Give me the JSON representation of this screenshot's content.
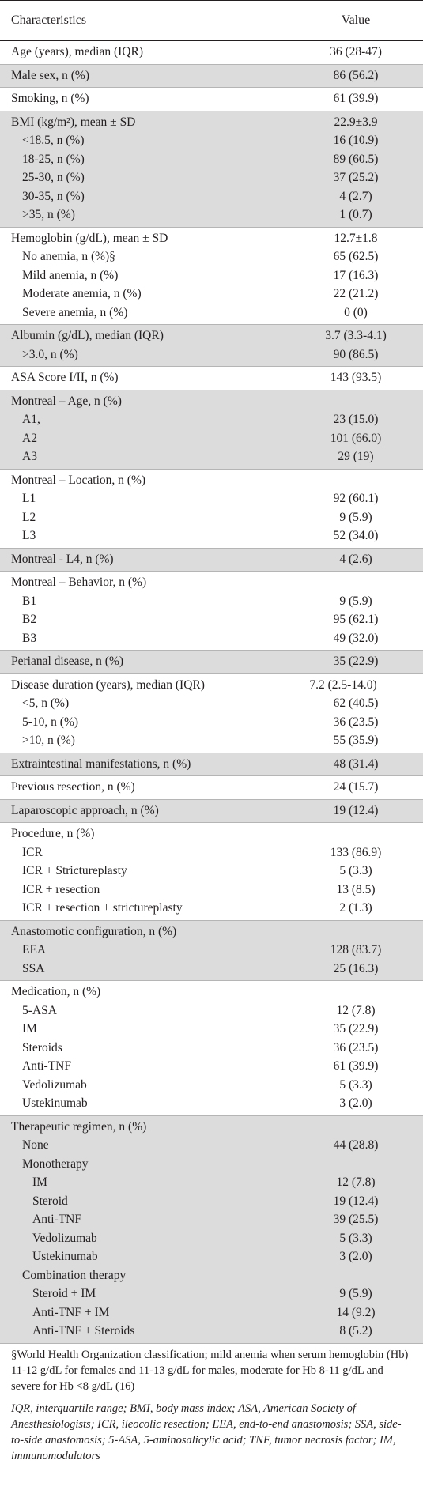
{
  "header": {
    "col1": "Characteristics",
    "col2": "Value"
  },
  "groups": [
    {
      "shaded": false,
      "rows": [
        {
          "label": "Age (years), median (IQR)",
          "value": "36 (28-47)",
          "indent": 0
        }
      ]
    },
    {
      "shaded": true,
      "rows": [
        {
          "label": "Male sex, n (%)",
          "value": "86 (56.2)",
          "indent": 0
        }
      ]
    },
    {
      "shaded": false,
      "rows": [
        {
          "label": "Smoking, n (%)",
          "value": "61 (39.9)",
          "indent": 0
        }
      ]
    },
    {
      "shaded": true,
      "rows": [
        {
          "label": "BMI (kg/m²), mean ± SD",
          "value": "22.9±3.9",
          "indent": 0
        },
        {
          "label": "<18.5, n (%)",
          "value": "16 (10.9)",
          "indent": 1
        },
        {
          "label": "18-25, n (%)",
          "value": "89 (60.5)",
          "indent": 1
        },
        {
          "label": "25-30, n (%)",
          "value": "37 (25.2)",
          "indent": 1
        },
        {
          "label": "30-35, n (%)",
          "value": "4 (2.7)",
          "indent": 1
        },
        {
          "label": ">35, n (%)",
          "value": "1 (0.7)",
          "indent": 1
        }
      ]
    },
    {
      "shaded": false,
      "rows": [
        {
          "label": "Hemoglobin (g/dL), mean ± SD",
          "value": "12.7±1.8",
          "indent": 0
        },
        {
          "label": "No anemia, n (%)§",
          "value": "65 (62.5)",
          "indent": 1
        },
        {
          "label": "Mild anemia, n (%)",
          "value": "17 (16.3)",
          "indent": 1
        },
        {
          "label": "Moderate anemia, n (%)",
          "value": "22 (21.2)",
          "indent": 1
        },
        {
          "label": "Severe anemia, n (%)",
          "value": "0 (0)",
          "indent": 1
        }
      ]
    },
    {
      "shaded": true,
      "rows": [
        {
          "label": "Albumin (g/dL), median (IQR)",
          "value": "3.7 (3.3-4.1)",
          "indent": 0
        },
        {
          "label": ">3.0, n (%)",
          "value": "90 (86.5)",
          "indent": 1
        }
      ]
    },
    {
      "shaded": false,
      "rows": [
        {
          "label": "ASA Score I/II, n (%)",
          "value": "143 (93.5)",
          "indent": 0
        }
      ]
    },
    {
      "shaded": true,
      "rows": [
        {
          "label": "Montreal – Age, n (%)",
          "value": "",
          "indent": 0
        },
        {
          "label": "A1,",
          "value": "23 (15.0)",
          "indent": 1
        },
        {
          "label": "A2",
          "value": "101 (66.0)",
          "indent": 1
        },
        {
          "label": "A3",
          "value": "29 (19)",
          "indent": 1
        }
      ]
    },
    {
      "shaded": false,
      "rows": [
        {
          "label": "Montreal – Location, n (%)",
          "value": "",
          "indent": 0
        },
        {
          "label": "L1",
          "value": "92 (60.1)",
          "indent": 1
        },
        {
          "label": "L2",
          "value": "9 (5.9)",
          "indent": 1
        },
        {
          "label": "L3",
          "value": "52 (34.0)",
          "indent": 1
        }
      ]
    },
    {
      "shaded": true,
      "rows": [
        {
          "label": "Montreal - L4, n (%)",
          "value": "4 (2.6)",
          "indent": 0
        }
      ]
    },
    {
      "shaded": false,
      "rows": [
        {
          "label": "Montreal – Behavior, n (%)",
          "value": "",
          "indent": 0
        },
        {
          "label": "B1",
          "value": "9 (5.9)",
          "indent": 1
        },
        {
          "label": "B2",
          "value": "95 (62.1)",
          "indent": 1
        },
        {
          "label": "B3",
          "value": "49 (32.0)",
          "indent": 1
        }
      ]
    },
    {
      "shaded": true,
      "rows": [
        {
          "label": "Perianal disease, n (%)",
          "value": "35 (22.9)",
          "indent": 0
        }
      ]
    },
    {
      "shaded": false,
      "rows": [
        {
          "label": "Disease duration (years), median (IQR)",
          "value": "7.2 (2.5-14.0)",
          "indent": 0,
          "wrap": true
        },
        {
          "label": "<5, n (%)",
          "value": "62 (40.5)",
          "indent": 1
        },
        {
          "label": "5-10, n (%)",
          "value": "36 (23.5)",
          "indent": 1
        },
        {
          "label": ">10, n (%)",
          "value": "55 (35.9)",
          "indent": 1
        }
      ]
    },
    {
      "shaded": true,
      "rows": [
        {
          "label": "Extraintestinal manifestations, n (%)",
          "value": "48 (31.4)",
          "indent": 0
        }
      ]
    },
    {
      "shaded": false,
      "rows": [
        {
          "label": "Previous resection, n (%)",
          "value": "24 (15.7)",
          "indent": 0
        }
      ]
    },
    {
      "shaded": true,
      "rows": [
        {
          "label": "Laparoscopic approach, n (%)",
          "value": "19 (12.4)",
          "indent": 0
        }
      ]
    },
    {
      "shaded": false,
      "rows": [
        {
          "label": "Procedure, n (%)",
          "value": "",
          "indent": 0
        },
        {
          "label": "ICR",
          "value": "133 (86.9)",
          "indent": 1
        },
        {
          "label": "ICR + Strictureplasty",
          "value": "5 (3.3)",
          "indent": 1
        },
        {
          "label": "ICR + resection",
          "value": "13 (8.5)",
          "indent": 1
        },
        {
          "label": "ICR + resection + strictureplasty",
          "value": "2 (1.3)",
          "indent": 1
        }
      ]
    },
    {
      "shaded": true,
      "rows": [
        {
          "label": "Anastomotic configuration, n (%)",
          "value": "",
          "indent": 0
        },
        {
          "label": "EEA",
          "value": "128 (83.7)",
          "indent": 1
        },
        {
          "label": "SSA",
          "value": "25 (16.3)",
          "indent": 1
        }
      ]
    },
    {
      "shaded": false,
      "rows": [
        {
          "label": "Medication, n (%)",
          "value": "",
          "indent": 0
        },
        {
          "label": "5-ASA",
          "value": "12 (7.8)",
          "indent": 1
        },
        {
          "label": "IM",
          "value": "35 (22.9)",
          "indent": 1
        },
        {
          "label": "Steroids",
          "value": "36 (23.5)",
          "indent": 1
        },
        {
          "label": "Anti-TNF",
          "value": "61 (39.9)",
          "indent": 1
        },
        {
          "label": "Vedolizumab",
          "value": "5 (3.3)",
          "indent": 1
        },
        {
          "label": "Ustekinumab",
          "value": "3 (2.0)",
          "indent": 1
        }
      ]
    },
    {
      "shaded": true,
      "rows": [
        {
          "label": "Therapeutic regimen, n (%)",
          "value": "",
          "indent": 0
        },
        {
          "label": "None",
          "value": "44 (28.8)",
          "indent": 1
        },
        {
          "label": "Monotherapy",
          "value": "",
          "indent": 1
        },
        {
          "label": "IM",
          "value": "12 (7.8)",
          "indent": 2
        },
        {
          "label": "Steroid",
          "value": "19 (12.4)",
          "indent": 2
        },
        {
          "label": "Anti-TNF",
          "value": "39 (25.5)",
          "indent": 2
        },
        {
          "label": "Vedolizumab",
          "value": "5 (3.3)",
          "indent": 2
        },
        {
          "label": "Ustekinumab",
          "value": "3 (2.0)",
          "indent": 2
        },
        {
          "label": "Combination therapy",
          "value": "",
          "indent": 1
        },
        {
          "label": "Steroid + IM",
          "value": "9 (5.9)",
          "indent": 2
        },
        {
          "label": "Anti-TNF + IM",
          "value": "14 (9.2)",
          "indent": 2
        },
        {
          "label": "Anti-TNF + Steroids",
          "value": "8 (5.2)",
          "indent": 2
        }
      ]
    }
  ],
  "footnotes": {
    "fn1": "§World Health Organization classification; mild anemia when serum hemoglobin (Hb) 11-12 g/dL for females and 11-13 g/dL for males, moderate for Hb 8-11 g/dL and severe for Hb <8 g/dL (16)",
    "fn2": "IQR, interquartile range; BMI, body mass index; ASA, American Society of Anesthesiologists; ICR, ileocolic resection; EEA, end-to-end anastomosis; SSA, side-to-side anastomosis; 5-ASA, 5-aminosalicylic acid; TNF, tumor necrosis factor; IM, immunomodulators"
  }
}
